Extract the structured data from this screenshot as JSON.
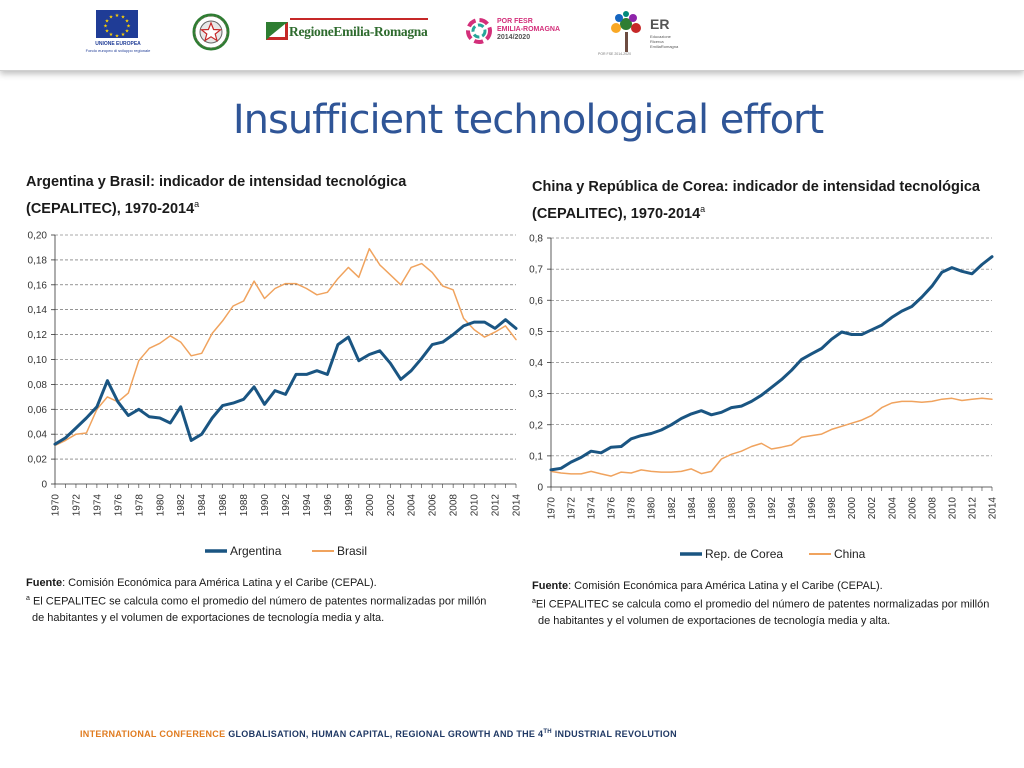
{
  "header": {
    "eu_logo": {
      "line1": "UNIONE EUROPEA",
      "line2": "Fondo europeo di sviluppo regionale"
    },
    "region_logo": {
      "text": "RegioneEmilia-Romagna"
    },
    "porfesr_logo": {
      "line1": "POR FESR",
      "line2": "EMILIA-ROMAGNA",
      "line3": "2014/2020"
    },
    "er_logo": {
      "title": "ER",
      "line1": "Educazione",
      "line2": "Ricerca",
      "line3": "EmiliaRomagna",
      "small": "POR FSE 2014-2020"
    }
  },
  "slide": {
    "title": "Insufficient technological effort"
  },
  "left_chart": {
    "heading_line1": "Argentina y Brasil: indicador de intensidad tecnológica",
    "heading_line2": "(CEPALITEC), 1970-2014",
    "heading_sup": "a",
    "note_source_label": "Fuente",
    "note_source": ": Comisión Económica para América Latina y el Caribe (CEPAL).",
    "note_sup": "a",
    "note_line1": "El CEPALITEC se calcula como el promedio del número de patentes normalizadas por millón",
    "note_line2": "de habitantes y el volumen de exportaciones de tecnología media y alta."
  },
  "right_chart": {
    "heading_line1": "China y República de Corea: indicador de intensidad tecnológica",
    "heading_line2": "(CEPALITEC), 1970-2014",
    "heading_sup": "a",
    "note_source_label": "Fuente",
    "note_source": ": Comisión Económica para América Latina y el Caribe (CEPAL).",
    "note_sup": "a",
    "note_line1": "El CEPALITEC se calcula como el promedio del número de patentes normalizadas por millón",
    "note_line2": "de habitantes y el volumen de exportaciones de tecnología media y alta."
  },
  "footer": {
    "part1": "INTERNATIONAL CONFERENCE",
    "part2": "GLOBALISATION, HUMAN CAPITAL, REGIONAL GROWTH AND THE 4",
    "sup": "TH",
    "part3": " INDUSTRIAL REVOLUTION"
  },
  "chart_data": [
    {
      "type": "line",
      "title": "Argentina y Brasil: indicador de intensidad tecnológica (CEPALITEC), 1970-2014",
      "ylim": [
        0,
        0.2
      ],
      "yticks": [
        "0",
        "0,02",
        "0,04",
        "0,06",
        "0,08",
        "0,10",
        "0,12",
        "0,14",
        "0,16",
        "0,18",
        "0,20"
      ],
      "ytick_values": [
        0,
        0.02,
        0.04,
        0.06,
        0.08,
        0.1,
        0.12,
        0.14,
        0.16,
        0.18,
        0.2
      ],
      "xlim": [
        1970,
        2014
      ],
      "xtick_labels": [
        "1970",
        "1972",
        "1974",
        "1976",
        "1978",
        "1980",
        "1982",
        "1984",
        "1986",
        "1988",
        "1990",
        "1992",
        "1994",
        "1996",
        "1998",
        "2000",
        "2002",
        "2004",
        "2006",
        "2008",
        "2010",
        "2012",
        "2014"
      ],
      "grid": "horizontal dashed",
      "legend_position": "bottom",
      "x": [
        1970,
        1971,
        1972,
        1973,
        1974,
        1975,
        1976,
        1977,
        1978,
        1979,
        1980,
        1981,
        1982,
        1983,
        1984,
        1985,
        1986,
        1987,
        1988,
        1989,
        1990,
        1991,
        1992,
        1993,
        1994,
        1995,
        1996,
        1997,
        1998,
        1999,
        2000,
        2001,
        2002,
        2003,
        2004,
        2005,
        2006,
        2007,
        2008,
        2009,
        2010,
        2011,
        2012,
        2013,
        2014
      ],
      "series": [
        {
          "name": "Argentina",
          "color": "#1a5582",
          "width": 3,
          "values": [
            0.032,
            0.037,
            0.045,
            0.053,
            0.062,
            0.083,
            0.066,
            0.055,
            0.06,
            0.054,
            0.053,
            0.049,
            0.062,
            0.035,
            0.04,
            0.053,
            0.063,
            0.065,
            0.068,
            0.078,
            0.064,
            0.075,
            0.072,
            0.088,
            0.088,
            0.091,
            0.088,
            0.112,
            0.118,
            0.099,
            0.104,
            0.107,
            0.097,
            0.084,
            0.091,
            0.101,
            0.112,
            0.114,
            0.12,
            0.127,
            0.13,
            0.13,
            0.125,
            0.132,
            0.125
          ]
        },
        {
          "name": "Brasil",
          "color": "#f0a35e",
          "width": 1.5,
          "values": [
            0.031,
            0.035,
            0.04,
            0.041,
            0.06,
            0.07,
            0.066,
            0.073,
            0.099,
            0.109,
            0.113,
            0.119,
            0.114,
            0.103,
            0.105,
            0.121,
            0.131,
            0.143,
            0.147,
            0.163,
            0.149,
            0.157,
            0.161,
            0.161,
            0.157,
            0.152,
            0.154,
            0.165,
            0.174,
            0.166,
            0.189,
            0.176,
            0.168,
            0.16,
            0.174,
            0.177,
            0.17,
            0.159,
            0.156,
            0.133,
            0.124,
            0.118,
            0.122,
            0.127,
            0.116
          ]
        }
      ]
    },
    {
      "type": "line",
      "title": "China y República de Corea: indicador de intensidad tecnológica (CEPALITEC), 1970-2014",
      "ylim": [
        0,
        0.8
      ],
      "yticks": [
        "0",
        "0,1",
        "0,2",
        "0,3",
        "0,4",
        "0,5",
        "0,6",
        "0,7",
        "0,8"
      ],
      "ytick_values": [
        0,
        0.1,
        0.2,
        0.3,
        0.4,
        0.5,
        0.6,
        0.7,
        0.8
      ],
      "xlim": [
        1970,
        2014
      ],
      "xtick_labels": [
        "1970",
        "1972",
        "1974",
        "1976",
        "1978",
        "1980",
        "1982",
        "1984",
        "1986",
        "1988",
        "1990",
        "1992",
        "1994",
        "1996",
        "1998",
        "2000",
        "2002",
        "2004",
        "2006",
        "2008",
        "2010",
        "2012",
        "2014"
      ],
      "grid": "horizontal dashed",
      "legend_position": "bottom",
      "x": [
        1970,
        1971,
        1972,
        1973,
        1974,
        1975,
        1976,
        1977,
        1978,
        1979,
        1980,
        1981,
        1982,
        1983,
        1984,
        1985,
        1986,
        1987,
        1988,
        1989,
        1990,
        1991,
        1992,
        1993,
        1994,
        1995,
        1996,
        1997,
        1998,
        1999,
        2000,
        2001,
        2002,
        2003,
        2004,
        2005,
        2006,
        2007,
        2008,
        2009,
        2010,
        2011,
        2012,
        2013,
        2014
      ],
      "series": [
        {
          "name": "Rep. de Corea",
          "color": "#1a5582",
          "width": 3,
          "values": [
            0.055,
            0.06,
            0.08,
            0.095,
            0.115,
            0.11,
            0.128,
            0.13,
            0.155,
            0.165,
            0.172,
            0.183,
            0.2,
            0.22,
            0.235,
            0.245,
            0.232,
            0.24,
            0.255,
            0.26,
            0.275,
            0.295,
            0.32,
            0.345,
            0.375,
            0.41,
            0.428,
            0.445,
            0.475,
            0.498,
            0.49,
            0.49,
            0.505,
            0.52,
            0.545,
            0.565,
            0.58,
            0.61,
            0.645,
            0.69,
            0.705,
            0.693,
            0.685,
            0.715,
            0.74
          ]
        },
        {
          "name": "China",
          "color": "#f0a35e",
          "width": 1.5,
          "values": [
            0.05,
            0.045,
            0.042,
            0.042,
            0.05,
            0.042,
            0.035,
            0.048,
            0.045,
            0.055,
            0.05,
            0.048,
            0.048,
            0.05,
            0.058,
            0.043,
            0.05,
            0.09,
            0.105,
            0.115,
            0.13,
            0.14,
            0.122,
            0.128,
            0.135,
            0.16,
            0.165,
            0.17,
            0.185,
            0.195,
            0.205,
            0.215,
            0.23,
            0.255,
            0.27,
            0.275,
            0.275,
            0.272,
            0.275,
            0.282,
            0.285,
            0.278,
            0.282,
            0.285,
            0.282
          ]
        }
      ]
    }
  ]
}
